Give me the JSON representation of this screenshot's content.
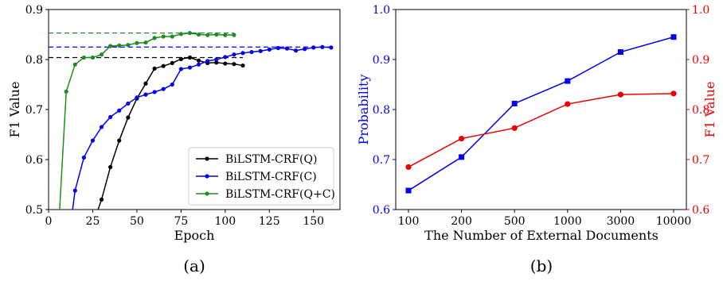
{
  "chart_data": [
    {
      "type": "line",
      "subcaption": "(a)",
      "xlabel": "Epoch",
      "ylabel": "F1 Value",
      "xlim": [
        0,
        165
      ],
      "ylim": [
        0.5,
        0.9
      ],
      "xticks": [
        "0",
        "25",
        "50",
        "75",
        "100",
        "125",
        "150"
      ],
      "xtick_values": [
        0,
        25,
        50,
        75,
        100,
        125,
        150
      ],
      "yticks": [
        "0.5",
        "0.6",
        "0.7",
        "0.8",
        "0.9"
      ],
      "ytick_values": [
        0.5,
        0.6,
        0.7,
        0.8,
        0.9
      ],
      "legend_position": "lower-right",
      "series": [
        {
          "name": "BiLSTM-CRF(Q)",
          "color": "#000000",
          "best": 0.804,
          "x": [
            25,
            30,
            35,
            40,
            45,
            50,
            55,
            60,
            65,
            70,
            75,
            80,
            85,
            90,
            95,
            100,
            105,
            110
          ],
          "y": [
            0.47,
            0.52,
            0.585,
            0.638,
            0.684,
            0.722,
            0.752,
            0.782,
            0.787,
            0.793,
            0.801,
            0.804,
            0.798,
            0.793,
            0.794,
            0.792,
            0.791,
            0.788
          ]
        },
        {
          "name": "BiLSTM-CRF(C)",
          "color": "#0000ee",
          "best": 0.825,
          "x": [
            10,
            15,
            20,
            25,
            30,
            35,
            40,
            45,
            50,
            55,
            60,
            65,
            70,
            75,
            80,
            85,
            90,
            95,
            100,
            105,
            110,
            115,
            120,
            125,
            130,
            135,
            140,
            145,
            150,
            155,
            160
          ],
          "y": [
            0.4,
            0.538,
            0.604,
            0.638,
            0.665,
            0.685,
            0.698,
            0.712,
            0.724,
            0.73,
            0.735,
            0.741,
            0.75,
            0.781,
            0.784,
            0.79,
            0.797,
            0.8,
            0.805,
            0.81,
            0.813,
            0.815,
            0.817,
            0.82,
            0.823,
            0.822,
            0.818,
            0.821,
            0.824,
            0.825,
            0.824
          ]
        },
        {
          "name": "BiLSTM-CRF(Q+C)",
          "color": "#1e8c1e",
          "best": 0.853,
          "x": [
            5,
            10,
            15,
            20,
            25,
            30,
            35,
            40,
            45,
            50,
            55,
            60,
            65,
            70,
            75,
            80,
            85,
            90,
            95,
            100,
            105
          ],
          "y": [
            0.42,
            0.736,
            0.79,
            0.804,
            0.804,
            0.81,
            0.827,
            0.828,
            0.829,
            0.833,
            0.834,
            0.843,
            0.846,
            0.846,
            0.851,
            0.853,
            0.85,
            0.849,
            0.85,
            0.849,
            0.849
          ]
        }
      ]
    },
    {
      "type": "line",
      "subcaption": "(b)",
      "xlabel": "The Number of External Documents",
      "ylabel_left": "Probability",
      "ylabel_right": "F1 Value",
      "categories": [
        "100",
        "200",
        "500",
        "1000",
        "3000",
        "10000"
      ],
      "ylim_left": [
        0.6,
        1.0
      ],
      "ylim_right": [
        0.6,
        1.0
      ],
      "yticks": [
        "0.6",
        "0.7",
        "0.8",
        "0.9",
        "1.0"
      ],
      "ytick_values": [
        0.6,
        0.7,
        0.8,
        0.9,
        1.0
      ],
      "left_axis_color": "#0000ee",
      "right_axis_color": "#ee0000",
      "series": [
        {
          "axis": "left",
          "color": "#0000ee",
          "marker": "square",
          "values": [
            0.638,
            0.705,
            0.812,
            0.857,
            0.915,
            0.945
          ]
        },
        {
          "axis": "right",
          "color": "#ee0000",
          "marker": "circle",
          "values": [
            0.685,
            0.742,
            0.763,
            0.811,
            0.83,
            0.832
          ]
        }
      ]
    }
  ]
}
